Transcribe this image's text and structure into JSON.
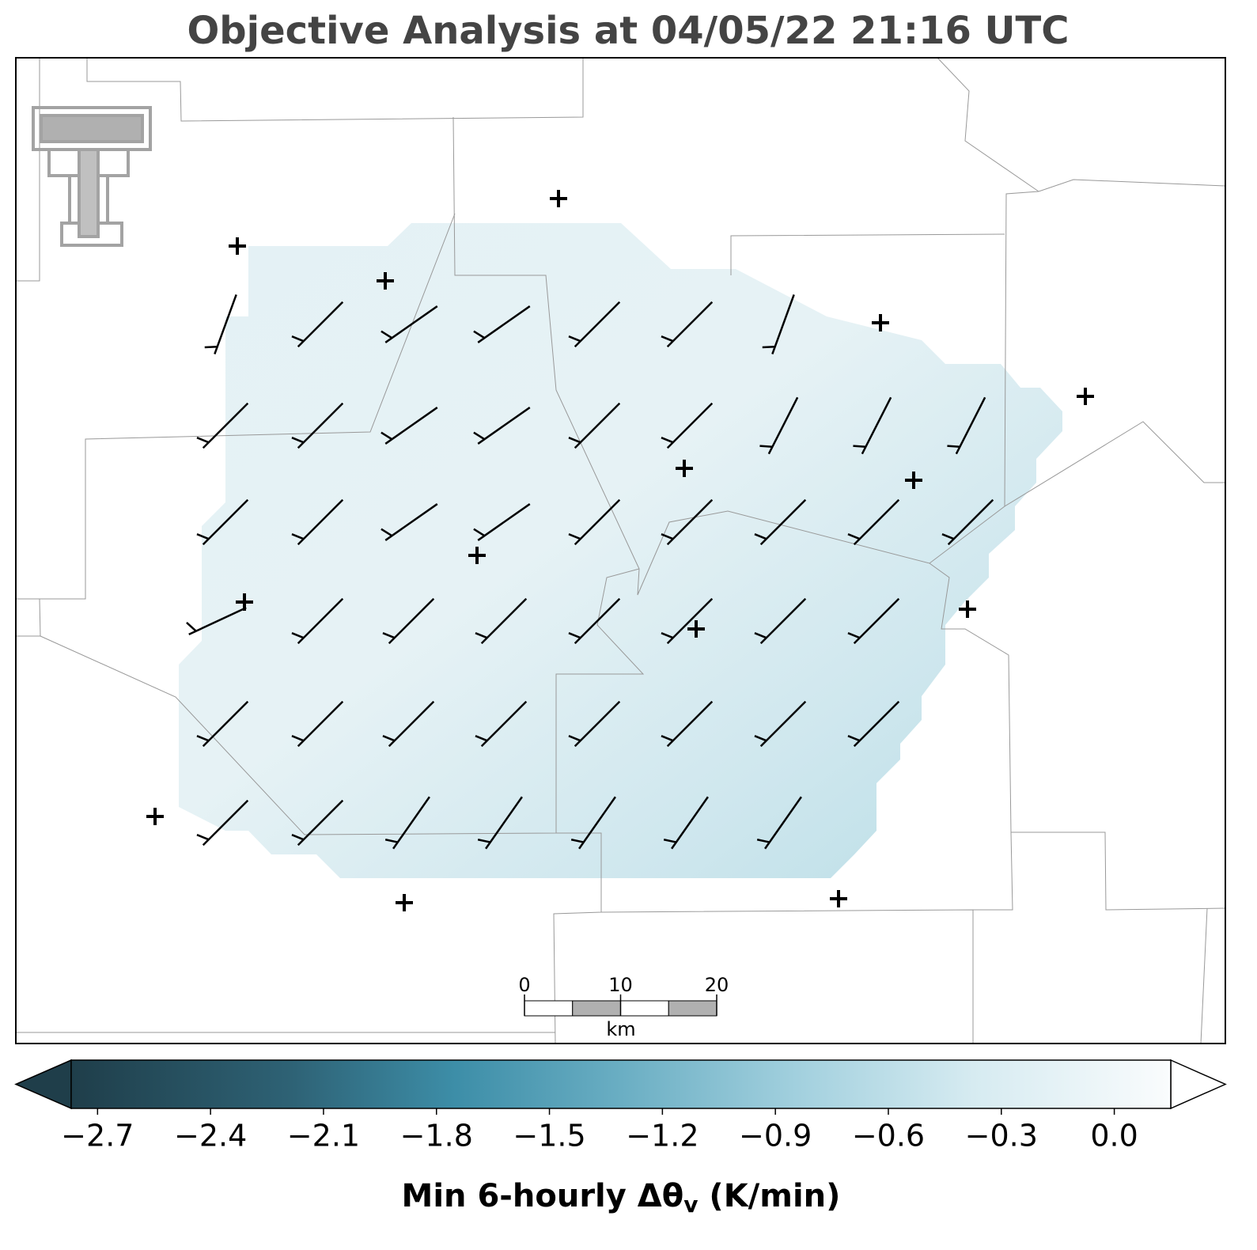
{
  "title": "Objective Analysis at 04/05/22 21:16 UTC",
  "colorbar": {
    "label": "Min 6-hourly Δθ",
    "label_subscript": "v",
    "label_unit": "(K/min)",
    "lim": [
      -2.77,
      0.15
    ],
    "ticks": [
      {
        "value": -2.7,
        "label": "−2.7"
      },
      {
        "value": -2.4,
        "label": "−2.4"
      },
      {
        "value": -2.1,
        "label": "−2.1"
      },
      {
        "value": -1.8,
        "label": "−1.8"
      },
      {
        "value": -1.5,
        "label": "−1.5"
      },
      {
        "value": -1.2,
        "label": "−1.2"
      },
      {
        "value": -0.9,
        "label": "−0.9"
      },
      {
        "value": -0.6,
        "label": "−0.6"
      },
      {
        "value": -0.3,
        "label": "−0.3"
      },
      {
        "value": 0,
        "label": "0.0"
      }
    ]
  },
  "scale_bar": {
    "ticks": [
      0,
      10,
      20
    ],
    "unit": "km"
  }
}
